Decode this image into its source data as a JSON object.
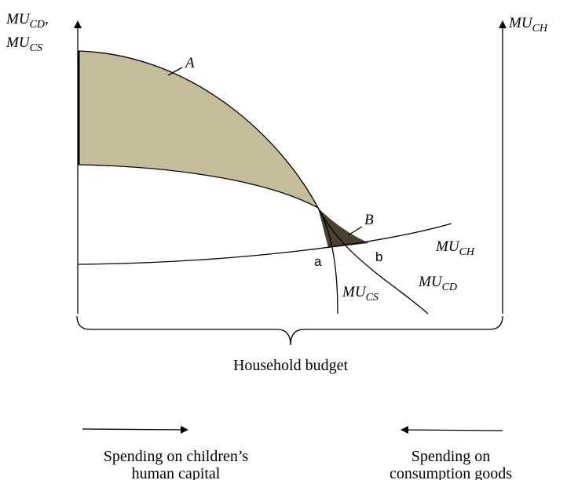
{
  "left_axis_label": {
    "top": {
      "main": "MU",
      "sub": "CD",
      "suffix": ","
    },
    "bottom": {
      "main": "MU",
      "sub": "CS"
    }
  },
  "right_axis_label": {
    "main": "MU",
    "sub": "CH"
  },
  "regions": {
    "A": "A",
    "B": "B"
  },
  "points": {
    "a": "a",
    "b": "b"
  },
  "curve_labels": {
    "ch": {
      "main": "MU",
      "sub": "CH"
    },
    "cs": {
      "main": "MU",
      "sub": "CS"
    },
    "cd": {
      "main": "MU",
      "sub": "CD"
    }
  },
  "budget_label": "Household budget",
  "left_caption": [
    "Spending on children’s",
    "human capital"
  ],
  "right_caption": [
    "Spending on",
    "consumption goods"
  ]
}
